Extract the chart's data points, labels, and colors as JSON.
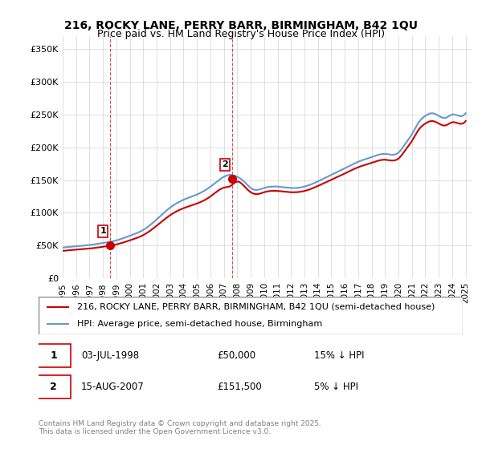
{
  "title1": "216, ROCKY LANE, PERRY BARR, BIRMINGHAM, B42 1QU",
  "title2": "Price paid vs. HM Land Registry's House Price Index (HPI)",
  "ylabel_ticks": [
    "£0",
    "£50K",
    "£100K",
    "£150K",
    "£200K",
    "£250K",
    "£300K",
    "£350K"
  ],
  "ytick_vals": [
    0,
    50000,
    100000,
    150000,
    200000,
    250000,
    300000,
    350000
  ],
  "ylim": [
    0,
    370000
  ],
  "legend_line1": "216, ROCKY LANE, PERRY BARR, BIRMINGHAM, B42 1QU (semi-detached house)",
  "legend_line2": "HPI: Average price, semi-detached house, Birmingham",
  "purchase1_label": "1",
  "purchase1_date": "03-JUL-1998",
  "purchase1_price": "£50,000",
  "purchase1_hpi": "15% ↓ HPI",
  "purchase2_label": "2",
  "purchase2_date": "15-AUG-2007",
  "purchase2_price": "£151,500",
  "purchase2_hpi": "5% ↓ HPI",
  "footnote": "Contains HM Land Registry data © Crown copyright and database right 2025.\nThis data is licensed under the Open Government Licence v3.0.",
  "line_color_red": "#cc0000",
  "line_color_blue": "#6699cc",
  "purchase1_x": 1998.5,
  "purchase1_y": 50000,
  "purchase2_x": 2007.6,
  "purchase2_y": 151500,
  "xmin": 1995,
  "xmax": 2025.5,
  "xtick_years": [
    1995,
    1996,
    1997,
    1998,
    1999,
    2000,
    2001,
    2002,
    2003,
    2004,
    2005,
    2006,
    2007,
    2008,
    2009,
    2010,
    2011,
    2012,
    2013,
    2014,
    2015,
    2016,
    2017,
    2018,
    2019,
    2020,
    2021,
    2022,
    2023,
    2024,
    2025
  ]
}
